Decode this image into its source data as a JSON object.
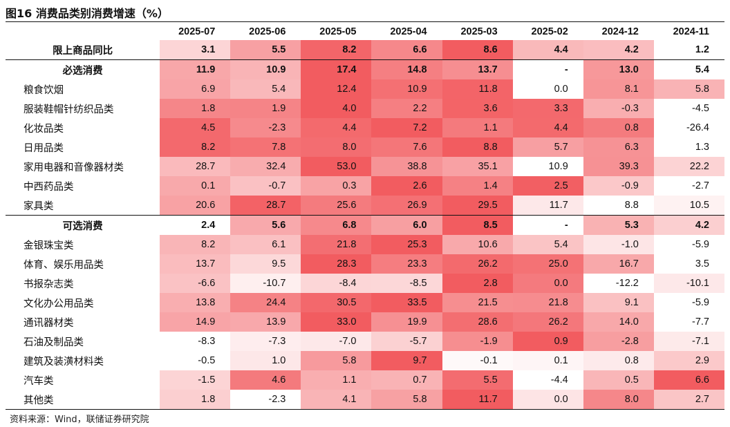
{
  "title": "图16 消费品类别消费增速（%）",
  "source": "资料来源：Wind，联储证券研究院",
  "chart_data": {
    "type": "table",
    "columns": [
      "2025-07",
      "2025-06",
      "2025-05",
      "2025-04",
      "2025-03",
      "2025-02",
      "2024-12",
      "2024-11"
    ],
    "rows": [
      {
        "label": "限上商品同比",
        "group": true,
        "values": [
          3.1,
          5.5,
          8.2,
          6.6,
          8.6,
          4.4,
          4.2,
          1.2
        ]
      },
      {
        "label": "必选消费",
        "group": true,
        "values": [
          11.9,
          10.9,
          17.4,
          14.8,
          13.7,
          "-",
          13.0,
          5.4
        ]
      },
      {
        "label": "粮食饮烟",
        "values": [
          6.9,
          5.4,
          12.4,
          10.9,
          11.8,
          0.0,
          8.1,
          5.8
        ]
      },
      {
        "label": "服装鞋帽针纺织品类",
        "values": [
          1.8,
          1.9,
          4.0,
          2.2,
          3.6,
          3.3,
          -0.3,
          -4.5
        ]
      },
      {
        "label": "化妆品类",
        "values": [
          4.5,
          -2.3,
          4.4,
          7.2,
          1.1,
          4.4,
          0.8,
          -26.4
        ]
      },
      {
        "label": "日用品类",
        "values": [
          8.2,
          7.8,
          8.0,
          7.6,
          8.8,
          5.7,
          6.3,
          1.3
        ]
      },
      {
        "label": "家用电器和音像器材类",
        "values": [
          28.7,
          32.4,
          53.0,
          38.8,
          35.1,
          10.9,
          39.3,
          22.2
        ]
      },
      {
        "label": "中西药品类",
        "values": [
          0.1,
          -0.7,
          0.3,
          2.6,
          1.4,
          2.5,
          -0.9,
          -2.7
        ]
      },
      {
        "label": "家具类",
        "values": [
          20.6,
          28.7,
          25.6,
          26.9,
          29.5,
          11.7,
          8.8,
          10.5
        ]
      },
      {
        "label": "可选消费",
        "group": true,
        "values": [
          2.4,
          5.6,
          6.8,
          6.0,
          8.5,
          "-",
          5.3,
          4.2
        ]
      },
      {
        "label": "金银珠宝类",
        "values": [
          8.2,
          6.1,
          21.8,
          25.3,
          10.6,
          5.4,
          -1.0,
          -5.9
        ]
      },
      {
        "label": "体育、娱乐用品类",
        "values": [
          13.7,
          9.5,
          28.3,
          23.3,
          26.2,
          25.0,
          16.7,
          3.5
        ]
      },
      {
        "label": "书报杂志类",
        "values": [
          -6.6,
          -10.7,
          -8.4,
          -8.5,
          2.8,
          0.0,
          -12.2,
          -10.1
        ]
      },
      {
        "label": "文化办公用品类",
        "values": [
          13.8,
          24.4,
          30.5,
          33.5,
          21.5,
          21.8,
          9.1,
          -5.9
        ]
      },
      {
        "label": "通讯器材类",
        "values": [
          14.9,
          13.9,
          33.0,
          19.9,
          28.6,
          26.2,
          14.0,
          -7.7
        ]
      },
      {
        "label": "石油及制品类",
        "values": [
          -8.3,
          -7.3,
          -7.0,
          -5.7,
          -1.9,
          0.9,
          -2.8,
          -7.1
        ]
      },
      {
        "label": "建筑及装潢材料类",
        "values": [
          -0.5,
          1.0,
          5.8,
          9.7,
          -0.1,
          0.1,
          0.8,
          2.9
        ]
      },
      {
        "label": "汽车类",
        "values": [
          -1.5,
          4.6,
          1.1,
          0.7,
          5.5,
          -4.4,
          0.5,
          6.6
        ]
      },
      {
        "label": "其他类",
        "values": [
          1.8,
          -2.3,
          4.1,
          5.8,
          11.7,
          0.0,
          8.0,
          2.7
        ]
      }
    ],
    "colors": {
      "high": "#f25c60",
      "low": "#ffffff",
      "text": "#111111"
    }
  }
}
